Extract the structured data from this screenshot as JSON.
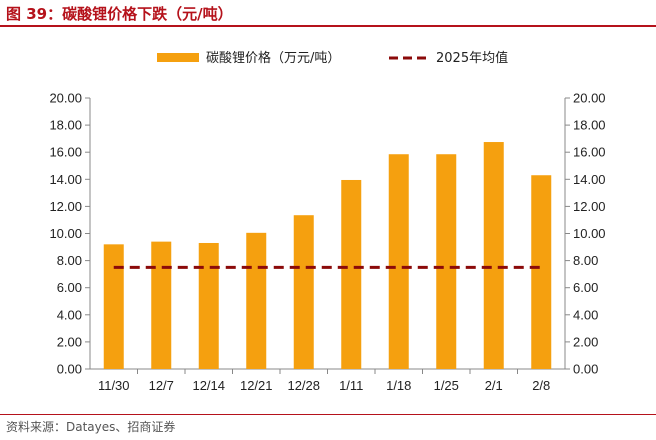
{
  "figure": {
    "title": "图 39：碳酸锂价格下跌（元/吨）",
    "source": "资料来源：Datayes、招商证券"
  },
  "colors": {
    "bar": "#f5a00f",
    "mean_line": "#8b0a0a",
    "accent": "#b5121b"
  },
  "chart_data": {
    "type": "bar",
    "categories": [
      "11/30",
      "12/7",
      "12/14",
      "12/21",
      "12/28",
      "1/11",
      "1/18",
      "1/25",
      "2/1",
      "2/8"
    ],
    "series": [
      {
        "name": "碳酸锂价格（万元/吨）",
        "type": "bar",
        "values": [
          9.2,
          9.4,
          9.3,
          10.05,
          11.35,
          13.95,
          15.85,
          15.85,
          16.75,
          14.3
        ]
      },
      {
        "name": "2025年均值",
        "type": "line",
        "style": "dashed",
        "values": [
          7.5,
          7.5,
          7.5,
          7.5,
          7.5,
          7.5,
          7.5,
          7.5,
          7.5,
          7.5
        ]
      }
    ],
    "ylim": [
      0,
      20
    ],
    "y_ticks": [
      "0.00",
      "2.00",
      "4.00",
      "6.00",
      "8.00",
      "10.00",
      "12.00",
      "14.00",
      "16.00",
      "18.00",
      "20.00"
    ],
    "y2_ticks": [
      "0.00",
      "2.00",
      "4.00",
      "6.00",
      "8.00",
      "10.00",
      "12.00",
      "14.00",
      "16.00",
      "18.00",
      "20.00"
    ],
    "grid": false,
    "legend": "top-center"
  }
}
